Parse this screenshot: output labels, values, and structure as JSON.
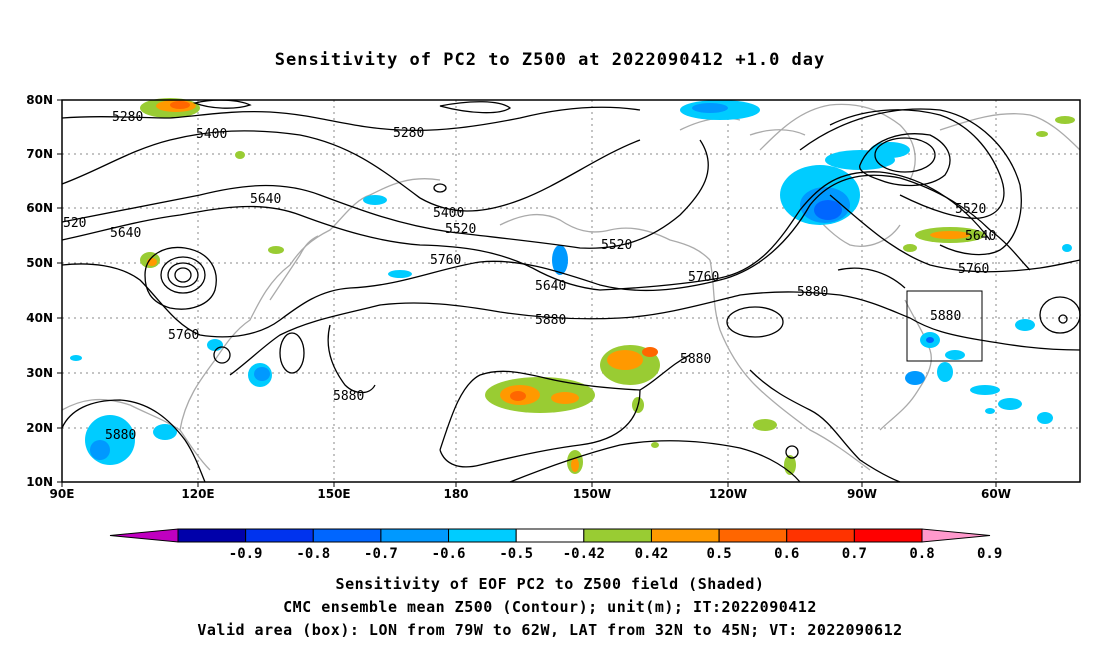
{
  "title": "Sensitivity of PC2 to Z500 at 2022090412 +1.0 day",
  "lat_ticks": [
    "80N",
    "70N",
    "60N",
    "50N",
    "40N",
    "30N",
    "20N",
    "10N"
  ],
  "lon_ticks": [
    "90E",
    "120E",
    "150E",
    "180",
    "150W",
    "120W",
    "90W",
    "60W"
  ],
  "contour_labels": [
    {
      "text": "5280"
    },
    {
      "text": "5400"
    },
    {
      "text": "5280"
    },
    {
      "text": "520"
    },
    {
      "text": "5640"
    },
    {
      "text": "5640"
    },
    {
      "text": "5400"
    },
    {
      "text": "5520"
    },
    {
      "text": "5520"
    },
    {
      "text": "5760"
    },
    {
      "text": "5640"
    },
    {
      "text": "5760"
    },
    {
      "text": "5880"
    },
    {
      "text": "5880"
    },
    {
      "text": "5760"
    },
    {
      "text": "5880"
    },
    {
      "text": "5880"
    },
    {
      "text": "5880"
    },
    {
      "text": "5880"
    },
    {
      "text": "5520"
    },
    {
      "text": "5640"
    },
    {
      "text": "5760"
    }
  ],
  "colorbar": {
    "labels": [
      "-0.9",
      "-0.8",
      "-0.7",
      "-0.6",
      "-0.5",
      "-0.42",
      "0.42",
      "0.5",
      "0.6",
      "0.7",
      "0.8",
      "0.9"
    ],
    "colors": [
      "#c000c0",
      "#0000aa",
      "#0033ee",
      "#0066ff",
      "#0099ff",
      "#00ccff",
      "#ffffff",
      "#99cc33",
      "#ff9900",
      "#ff6600",
      "#ff3300",
      "#ff0000",
      "#ff99cc"
    ]
  },
  "box": {
    "lon_range": "79W to 62W",
    "lat_range": "32N to 45N"
  },
  "caption1": "Sensitivity of EOF PC2 to Z500 field (Shaded)",
  "caption2": "CMC ensemble mean Z500 (Contour); unit(m); IT:2022090412",
  "caption3": "Valid area (box): LON from 79W to 62W, LAT from 32N to 45N; VT: 2022090612"
}
